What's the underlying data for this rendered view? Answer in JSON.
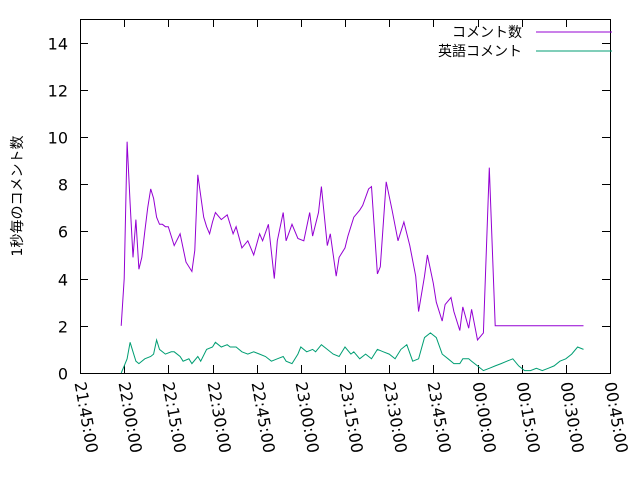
{
  "chart_data": {
    "type": "line",
    "title": "",
    "xlabel": "",
    "ylabel": "1秒毎のコメント数",
    "xlim": [
      "21:45:00",
      "00:45:00"
    ],
    "ylim": [
      0,
      15
    ],
    "grid": false,
    "legend_position": "top-right",
    "xticks": [
      "21:45:00",
      "22:00:00",
      "22:15:00",
      "22:30:00",
      "22:45:00",
      "23:00:00",
      "23:15:00",
      "23:30:00",
      "23:45:00",
      "00:00:00",
      "00:15:00",
      "00:30:00",
      "00:45:00"
    ],
    "yticks": [
      "0",
      "2",
      "4",
      "6",
      "8",
      "10",
      "12",
      "14"
    ],
    "series": [
      {
        "name": "コメント数",
        "color": "#9400d3",
        "x": [
          "21:59:00",
          "22:00:00",
          "22:01:00",
          "22:02:00",
          "22:03:00",
          "22:04:00",
          "22:05:00",
          "22:06:00",
          "22:07:00",
          "22:08:00",
          "22:09:00",
          "22:10:00",
          "22:11:00",
          "22:12:00",
          "22:13:00",
          "22:14:00",
          "22:15:00",
          "22:17:00",
          "22:19:00",
          "22:21:00",
          "22:23:00",
          "22:24:00",
          "22:25:00",
          "22:27:00",
          "22:28:00",
          "22:29:00",
          "22:30:00",
          "22:31:00",
          "22:33:00",
          "22:35:00",
          "22:37:00",
          "22:38:00",
          "22:40:00",
          "22:42:00",
          "22:44:00",
          "22:46:00",
          "22:47:00",
          "22:49:00",
          "22:51:00",
          "22:52:00",
          "22:54:00",
          "22:55:00",
          "22:57:00",
          "22:59:00",
          "23:01:00",
          "23:03:00",
          "23:04:00",
          "23:06:00",
          "23:07:00",
          "23:09:00",
          "23:10:00",
          "23:12:00",
          "23:13:00",
          "23:15:00",
          "23:16:00",
          "23:18:00",
          "23:20:00",
          "23:21:00",
          "23:23:00",
          "23:24:00",
          "23:26:00",
          "23:27:00",
          "23:29:00",
          "23:31:00",
          "23:33:00",
          "23:35:00",
          "23:37:00",
          "23:39:00",
          "23:40:00",
          "23:42:00",
          "23:43:00",
          "23:45:00",
          "23:46:00",
          "23:48:00",
          "23:49:00",
          "23:51:00",
          "23:52:00",
          "23:54:00",
          "23:55:00",
          "23:57:00",
          "23:58:00",
          "00:00:00",
          "00:02:00",
          "00:04:00",
          "00:06:00",
          "00:08:00",
          "00:10:00",
          "00:12:00",
          "00:14:00",
          "00:16:00",
          "00:17:00",
          "00:19:00",
          "00:20:00",
          "00:21:00",
          "00:23:00",
          "00:24:00",
          "00:25:00",
          "00:27:00",
          "00:28:00",
          "00:30:00",
          "00:31:00",
          "00:33:00",
          "00:35:00",
          "00:36:00"
        ],
        "values": [
          2.0,
          4.0,
          9.8,
          7.2,
          4.9,
          6.5,
          4.4,
          4.9,
          6.0,
          7.0,
          7.8,
          7.4,
          6.6,
          6.3,
          6.3,
          6.2,
          6.2,
          5.4,
          5.9,
          4.7,
          4.3,
          5.2,
          8.4,
          6.6,
          6.2,
          5.9,
          6.4,
          6.8,
          6.5,
          6.7,
          5.9,
          6.2,
          5.3,
          5.6,
          5.0,
          5.9,
          5.6,
          6.3,
          4.0,
          5.6,
          6.8,
          5.6,
          6.3,
          5.7,
          5.6,
          6.8,
          5.8,
          6.8,
          7.9,
          5.4,
          5.9,
          4.1,
          4.9,
          5.3,
          5.8,
          6.6,
          6.9,
          7.1,
          7.8,
          7.9,
          4.2,
          4.5,
          8.1,
          6.9,
          5.6,
          6.4,
          5.4,
          4.1,
          2.6,
          4.1,
          5.0,
          3.8,
          3.0,
          2.2,
          2.9,
          3.2,
          2.6,
          1.8,
          2.8,
          1.9,
          2.7,
          1.4,
          1.7,
          8.7,
          2.0,
          2.0,
          2.0,
          2.0,
          2.0,
          2.0,
          2.0,
          2.0,
          2.0,
          2.0,
          2.0,
          2.0,
          2.0,
          2.0,
          2.0,
          2.0,
          2.0,
          2.0,
          2.0,
          2.0
        ]
      },
      {
        "name": "英語コメント",
        "color": "#009e73",
        "x": [
          "21:59:00",
          "22:00:00",
          "22:01:00",
          "22:02:00",
          "22:03:00",
          "22:04:00",
          "22:05:00",
          "22:07:00",
          "22:09:00",
          "22:10:00",
          "22:11:00",
          "22:12:00",
          "22:14:00",
          "22:16:00",
          "22:17:00",
          "22:19:00",
          "22:20:00",
          "22:22:00",
          "22:23:00",
          "22:25:00",
          "22:26:00",
          "22:28:00",
          "22:30:00",
          "22:31:00",
          "22:33:00",
          "22:35:00",
          "22:36:00",
          "22:38:00",
          "22:40:00",
          "22:42:00",
          "22:44:00",
          "22:46:00",
          "22:48:00",
          "22:50:00",
          "22:52:00",
          "22:54:00",
          "22:55:00",
          "22:57:00",
          "22:59:00",
          "23:00:00",
          "23:02:00",
          "23:04:00",
          "23:05:00",
          "23:07:00",
          "23:09:00",
          "23:11:00",
          "23:13:00",
          "23:15:00",
          "23:17:00",
          "23:18:00",
          "23:20:00",
          "23:22:00",
          "23:24:00",
          "23:26:00",
          "23:28:00",
          "23:30:00",
          "23:32:00",
          "23:34:00",
          "23:36:00",
          "23:38:00",
          "23:40:00",
          "23:42:00",
          "23:44:00",
          "23:46:00",
          "23:48:00",
          "23:50:00",
          "23:52:00",
          "23:54:00",
          "23:55:00",
          "23:57:00",
          "23:58:00",
          "00:00:00",
          "00:02:00",
          "00:04:00",
          "00:06:00",
          "00:08:00",
          "00:10:00",
          "00:12:00",
          "00:14:00",
          "00:16:00",
          "00:18:00",
          "00:20:00",
          "00:22:00",
          "00:24:00",
          "00:26:00",
          "00:28:00",
          "00:30:00",
          "00:32:00",
          "00:34:00",
          "00:36:00"
        ],
        "values": [
          0.0,
          0.3,
          0.6,
          1.3,
          0.9,
          0.5,
          0.4,
          0.6,
          0.7,
          0.8,
          1.4,
          1.0,
          0.8,
          0.9,
          0.9,
          0.7,
          0.5,
          0.6,
          0.4,
          0.7,
          0.5,
          1.0,
          1.1,
          1.3,
          1.1,
          1.2,
          1.1,
          1.1,
          0.9,
          0.8,
          0.9,
          0.8,
          0.7,
          0.5,
          0.6,
          0.7,
          0.5,
          0.4,
          0.8,
          1.1,
          0.9,
          1.0,
          0.9,
          1.2,
          1.0,
          0.8,
          0.7,
          1.1,
          0.8,
          0.9,
          0.6,
          0.8,
          0.6,
          1.0,
          0.9,
          0.8,
          0.6,
          1.0,
          1.2,
          0.5,
          0.6,
          1.5,
          1.7,
          1.5,
          0.8,
          0.6,
          0.4,
          0.4,
          0.6,
          0.6,
          0.5,
          0.3,
          0.1,
          0.2,
          0.3,
          0.4,
          0.5,
          0.6,
          0.3,
          0.1,
          0.1,
          0.2,
          0.1,
          0.2,
          0.3,
          0.5,
          0.6,
          0.8,
          1.1,
          1.0
        ]
      }
    ]
  }
}
